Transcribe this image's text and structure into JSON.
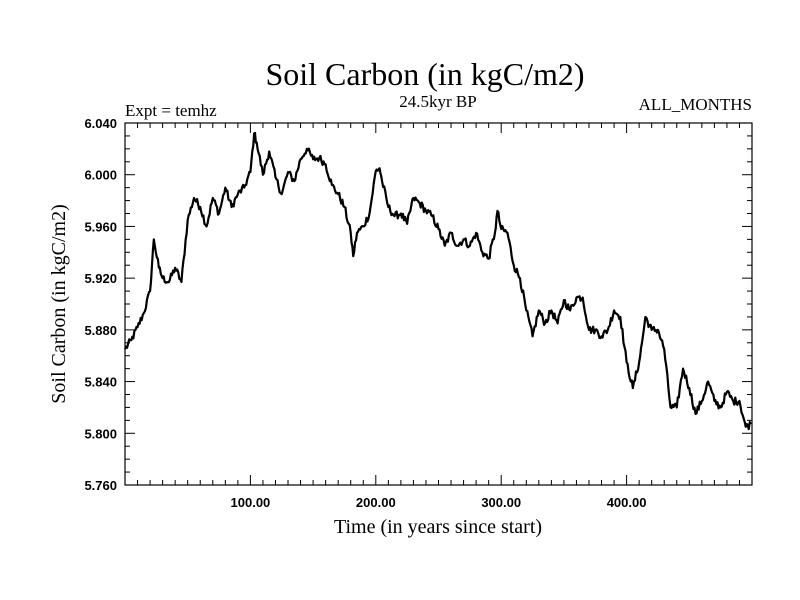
{
  "chart_data": {
    "type": "line",
    "title": "Soil Carbon (in kgC/m2)",
    "subtitle_left": "Expt = temhz",
    "subtitle_center": "24.5kyr BP",
    "subtitle_right": "ALL_MONTHS",
    "xlabel": "Time (in years since start)",
    "ylabel": "Soil Carbon (in kgC/m2)",
    "xlim": [
      0,
      500
    ],
    "ylim": [
      5.76,
      6.04
    ],
    "x_ticks": [
      100,
      200,
      300,
      400
    ],
    "x_tick_labels": [
      "100.00",
      "200.00",
      "300.00",
      "400.00"
    ],
    "y_ticks": [
      5.76,
      5.8,
      5.84,
      5.88,
      5.92,
      5.96,
      6.0,
      6.04
    ],
    "y_tick_labels": [
      "5.760",
      "5.800",
      "5.840",
      "5.880",
      "5.920",
      "5.960",
      "6.000",
      "6.040"
    ],
    "series": [
      {
        "name": "Soil Carbon",
        "x": [
          0,
          5,
          10,
          15,
          20,
          23,
          27,
          30,
          35,
          40,
          45,
          50,
          55,
          60,
          65,
          70,
          75,
          80,
          85,
          90,
          95,
          100,
          103,
          105,
          110,
          115,
          120,
          125,
          130,
          135,
          140,
          145,
          150,
          155,
          160,
          165,
          170,
          175,
          180,
          182,
          185,
          190,
          195,
          200,
          203,
          205,
          210,
          215,
          220,
          225,
          230,
          235,
          240,
          245,
          250,
          255,
          260,
          265,
          270,
          275,
          280,
          285,
          290,
          295,
          297,
          300,
          305,
          310,
          315,
          320,
          325,
          330,
          335,
          340,
          345,
          350,
          355,
          360,
          365,
          370,
          375,
          380,
          385,
          390,
          395,
          400,
          405,
          410,
          413,
          415,
          420,
          425,
          430,
          435,
          440,
          445,
          450,
          455,
          460,
          465,
          470,
          475,
          480,
          485,
          490,
          495,
          499
        ],
        "values": [
          5.865,
          5.872,
          5.882,
          5.893,
          5.91,
          5.95,
          5.928,
          5.92,
          5.917,
          5.928,
          5.917,
          5.965,
          5.982,
          5.975,
          5.96,
          5.982,
          5.97,
          5.99,
          5.975,
          5.985,
          5.99,
          6.002,
          6.032,
          6.025,
          6.0,
          6.018,
          5.998,
          5.985,
          6.002,
          5.995,
          6.012,
          6.02,
          6.012,
          6.013,
          6.008,
          5.992,
          5.985,
          5.975,
          5.955,
          5.937,
          5.955,
          5.96,
          5.97,
          6.003,
          6.005,
          5.995,
          5.975,
          5.968,
          5.97,
          5.962,
          5.982,
          5.978,
          5.972,
          5.968,
          5.958,
          5.945,
          5.955,
          5.945,
          5.95,
          5.945,
          5.955,
          5.94,
          5.935,
          5.955,
          5.972,
          5.958,
          5.955,
          5.93,
          5.92,
          5.895,
          5.875,
          5.895,
          5.885,
          5.895,
          5.885,
          5.903,
          5.895,
          5.905,
          5.905,
          5.88,
          5.88,
          5.875,
          5.88,
          5.895,
          5.89,
          5.855,
          5.835,
          5.855,
          5.875,
          5.89,
          5.88,
          5.88,
          5.865,
          5.82,
          5.82,
          5.85,
          5.835,
          5.815,
          5.825,
          5.84,
          5.825,
          5.82,
          5.832,
          5.825,
          5.825,
          5.805,
          5.807
        ]
      }
    ]
  }
}
